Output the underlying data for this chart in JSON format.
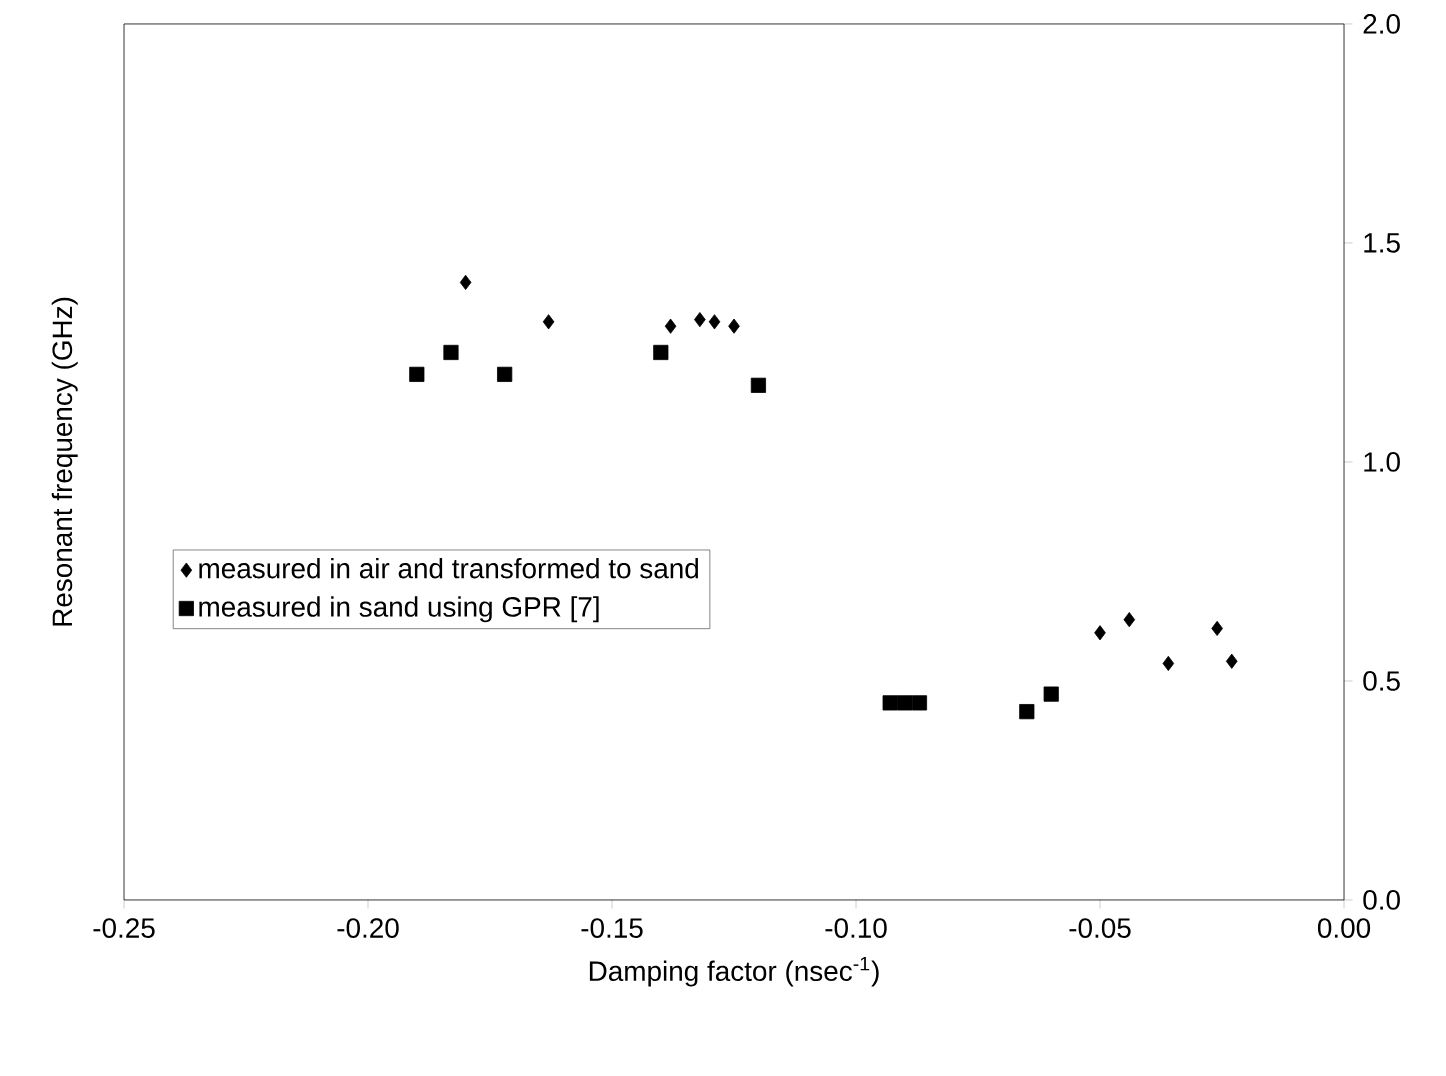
{
  "chart_data": {
    "type": "scatter",
    "xlabel": "Damping factor (nsec$^{-1}$)",
    "ylabel": "Resonant frequency (GHz)",
    "xlim": [
      -0.25,
      0.0
    ],
    "ylim": [
      0.0,
      2.0
    ],
    "xticks": [
      {
        "value": -0.25,
        "label": "-0.25"
      },
      {
        "value": -0.2,
        "label": "-0.20"
      },
      {
        "value": -0.15,
        "label": "-0.15"
      },
      {
        "value": -0.1,
        "label": "-0.10"
      },
      {
        "value": -0.05,
        "label": "-0.05"
      },
      {
        "value": 0.0,
        "label": "0.00"
      }
    ],
    "yticks": [
      {
        "value": 0.0,
        "label": "0.0"
      },
      {
        "value": 0.5,
        "label": "0.5"
      },
      {
        "value": 1.0,
        "label": "1.0"
      },
      {
        "value": 1.5,
        "label": "1.5"
      },
      {
        "value": 2.0,
        "label": "2.0"
      }
    ],
    "grid": false,
    "legend": "left",
    "series": [
      {
        "name": "measured in air and transformed to sand",
        "color": "#000000",
        "marker": "diamond",
        "x": [
          -0.18,
          -0.163,
          -0.138,
          -0.132,
          -0.129,
          -0.125,
          -0.05,
          -0.044,
          -0.036,
          -0.026,
          -0.023
        ],
        "values": [
          1.41,
          1.32,
          1.31,
          1.325,
          1.32,
          1.31,
          0.61,
          0.64,
          0.54,
          0.62,
          0.545
        ]
      },
      {
        "name": "measured in sand using GPR [7]",
        "color": "#000000",
        "marker": "square",
        "x": [
          -0.19,
          -0.183,
          -0.172,
          -0.14,
          -0.12,
          -0.093,
          -0.09,
          -0.087,
          -0.065,
          -0.06
        ],
        "values": [
          1.2,
          1.25,
          1.2,
          1.25,
          1.175,
          0.45,
          0.45,
          0.45,
          0.43,
          0.47
        ]
      }
    ]
  }
}
